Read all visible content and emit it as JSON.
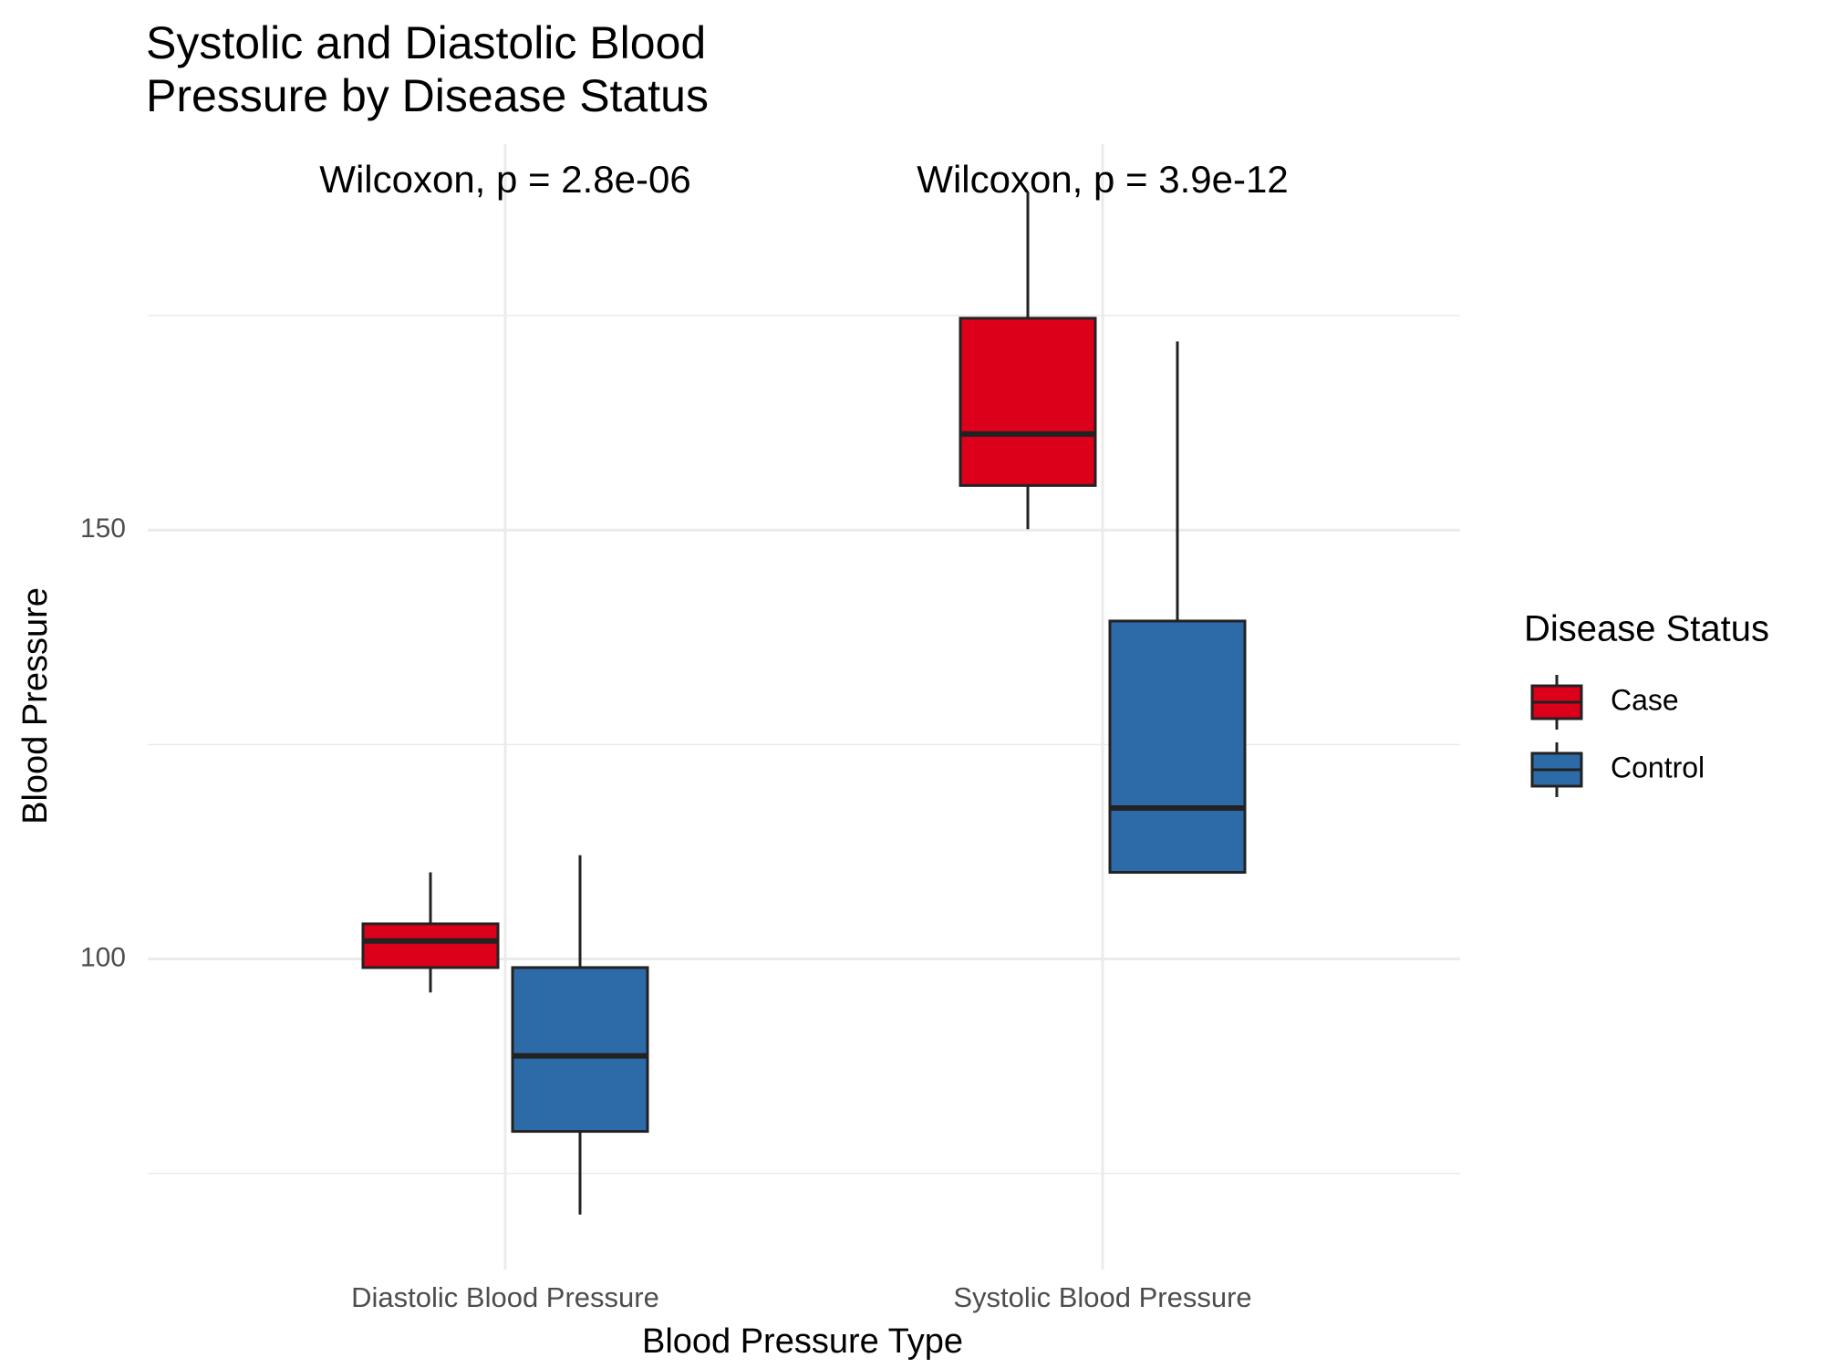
{
  "chart_data": {
    "type": "boxplot",
    "title": "Systolic and Diastolic Blood Pressure by Disease Status",
    "x_label": "Blood Pressure Type",
    "y_label": "Blood Pressure",
    "categories": [
      "Diastolic Blood Pressure",
      "Systolic Blood Pressure"
    ],
    "annotations": [
      "Wilcoxon, p = 2.8e-06",
      "Wilcoxon, p = 3.9e-12"
    ],
    "legend_title": "Disease Status",
    "legend_position": "right",
    "series": [
      {
        "name": "Case",
        "color": "#dc001a",
        "low": [
          96.1,
          150.1
        ],
        "q1": [
          99.0,
          155.2
        ],
        "median": [
          102.1,
          161.2
        ],
        "q3": [
          104.1,
          174.7
        ],
        "high": [
          110.1,
          189.4
        ]
      },
      {
        "name": "Control",
        "color": "#2d6aa8",
        "low": [
          70.2,
          110.1
        ],
        "q1": [
          79.9,
          110.1
        ],
        "median": [
          88.7,
          117.6
        ],
        "q3": [
          99.0,
          139.4
        ],
        "high": [
          112.1,
          172.0
        ]
      }
    ],
    "ylim": [
      63.8,
      195
    ],
    "yticks": [
      100,
      150
    ],
    "y_minor_grid": [
      75,
      125,
      175
    ],
    "grid": true
  }
}
